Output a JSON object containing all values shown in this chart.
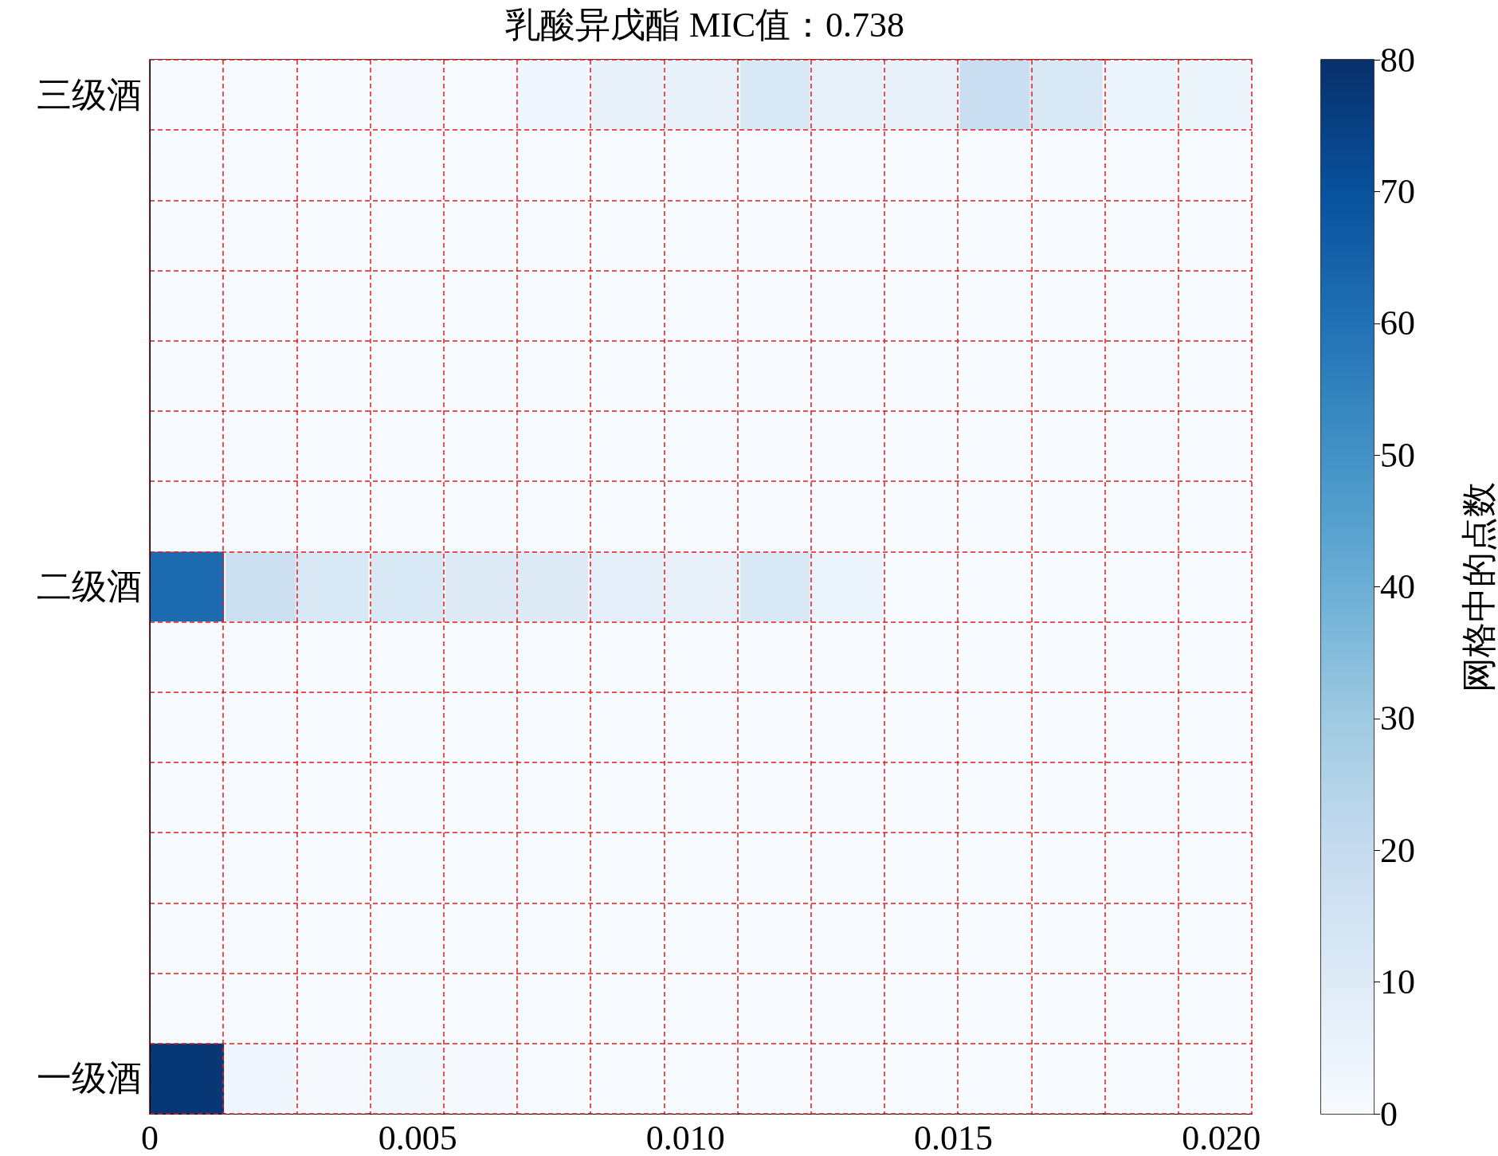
{
  "chart_data": {
    "type": "heatmap",
    "title": "乳酸异戊酯 MIC值：0.738",
    "x": [
      0.0007,
      0.0021,
      0.0034,
      0.0048,
      0.0062,
      0.0075,
      0.0089,
      0.0103,
      0.0117,
      0.013,
      0.0144,
      0.0158,
      0.0171,
      0.0185,
      0.0199
    ],
    "y_categories": [
      "三级酒",
      null,
      null,
      null,
      null,
      null,
      null,
      "二级酒",
      null,
      null,
      null,
      null,
      null,
      null,
      "一级酒"
    ],
    "xlim": [
      0,
      0.02057
    ],
    "xticks": [
      0,
      0.005,
      {
        "value": 0.01,
        "label": "0.010"
      },
      0.015,
      {
        "value": 0.02,
        "label": "0.020"
      }
    ],
    "cells": [
      [
        0,
        0,
        0,
        1,
        0,
        3,
        6,
        6,
        12,
        7,
        6,
        18,
        12,
        4,
        4
      ],
      [
        0,
        0,
        0,
        0,
        0,
        0,
        0,
        0,
        0,
        0,
        0,
        0,
        0,
        0,
        0
      ],
      [
        0,
        0,
        0,
        0,
        0,
        0,
        0,
        0,
        0,
        0,
        0,
        0,
        0,
        0,
        0
      ],
      [
        0,
        0,
        0,
        0,
        0,
        0,
        0,
        0,
        0,
        0,
        0,
        0,
        0,
        0,
        0
      ],
      [
        0,
        0,
        0,
        0,
        0,
        0,
        0,
        0,
        0,
        0,
        0,
        0,
        0,
        0,
        0
      ],
      [
        0,
        0,
        0,
        0,
        0,
        0,
        0,
        0,
        0,
        0,
        0,
        0,
        0,
        0,
        0
      ],
      [
        0,
        0,
        0,
        0,
        0,
        0,
        0,
        0,
        0,
        0,
        0,
        0,
        0,
        0,
        0
      ],
      [
        62,
        17,
        12,
        12,
        10,
        10,
        8,
        6,
        12,
        5,
        0,
        0,
        0,
        0,
        0
      ],
      [
        0,
        0,
        0,
        0,
        0,
        0,
        0,
        0,
        0,
        0,
        0,
        0,
        0,
        0,
        0
      ],
      [
        0,
        0,
        0,
        0,
        0,
        0,
        0,
        0,
        0,
        0,
        0,
        0,
        0,
        0,
        0
      ],
      [
        0,
        0,
        0,
        0,
        0,
        0,
        0,
        0,
        0,
        0,
        0,
        0,
        0,
        0,
        0
      ],
      [
        0,
        0,
        0,
        0,
        0,
        0,
        0,
        0,
        0,
        0,
        0,
        0,
        0,
        0,
        0
      ],
      [
        0,
        0,
        0,
        0,
        0,
        0,
        0,
        0,
        0,
        0,
        0,
        0,
        0,
        0,
        0
      ],
      [
        0,
        0,
        0,
        0,
        0,
        0,
        0,
        0,
        0,
        0,
        0,
        0,
        0,
        0,
        0
      ],
      [
        78,
        3,
        1,
        2,
        1,
        0,
        0,
        0,
        0,
        0,
        0,
        0,
        0,
        0,
        0
      ]
    ],
    "clim": [
      0,
      80
    ],
    "cticks": [
      0,
      10,
      20,
      30,
      40,
      50,
      60,
      70,
      80
    ],
    "clabel": "网格中的点数",
    "grid": true
  }
}
